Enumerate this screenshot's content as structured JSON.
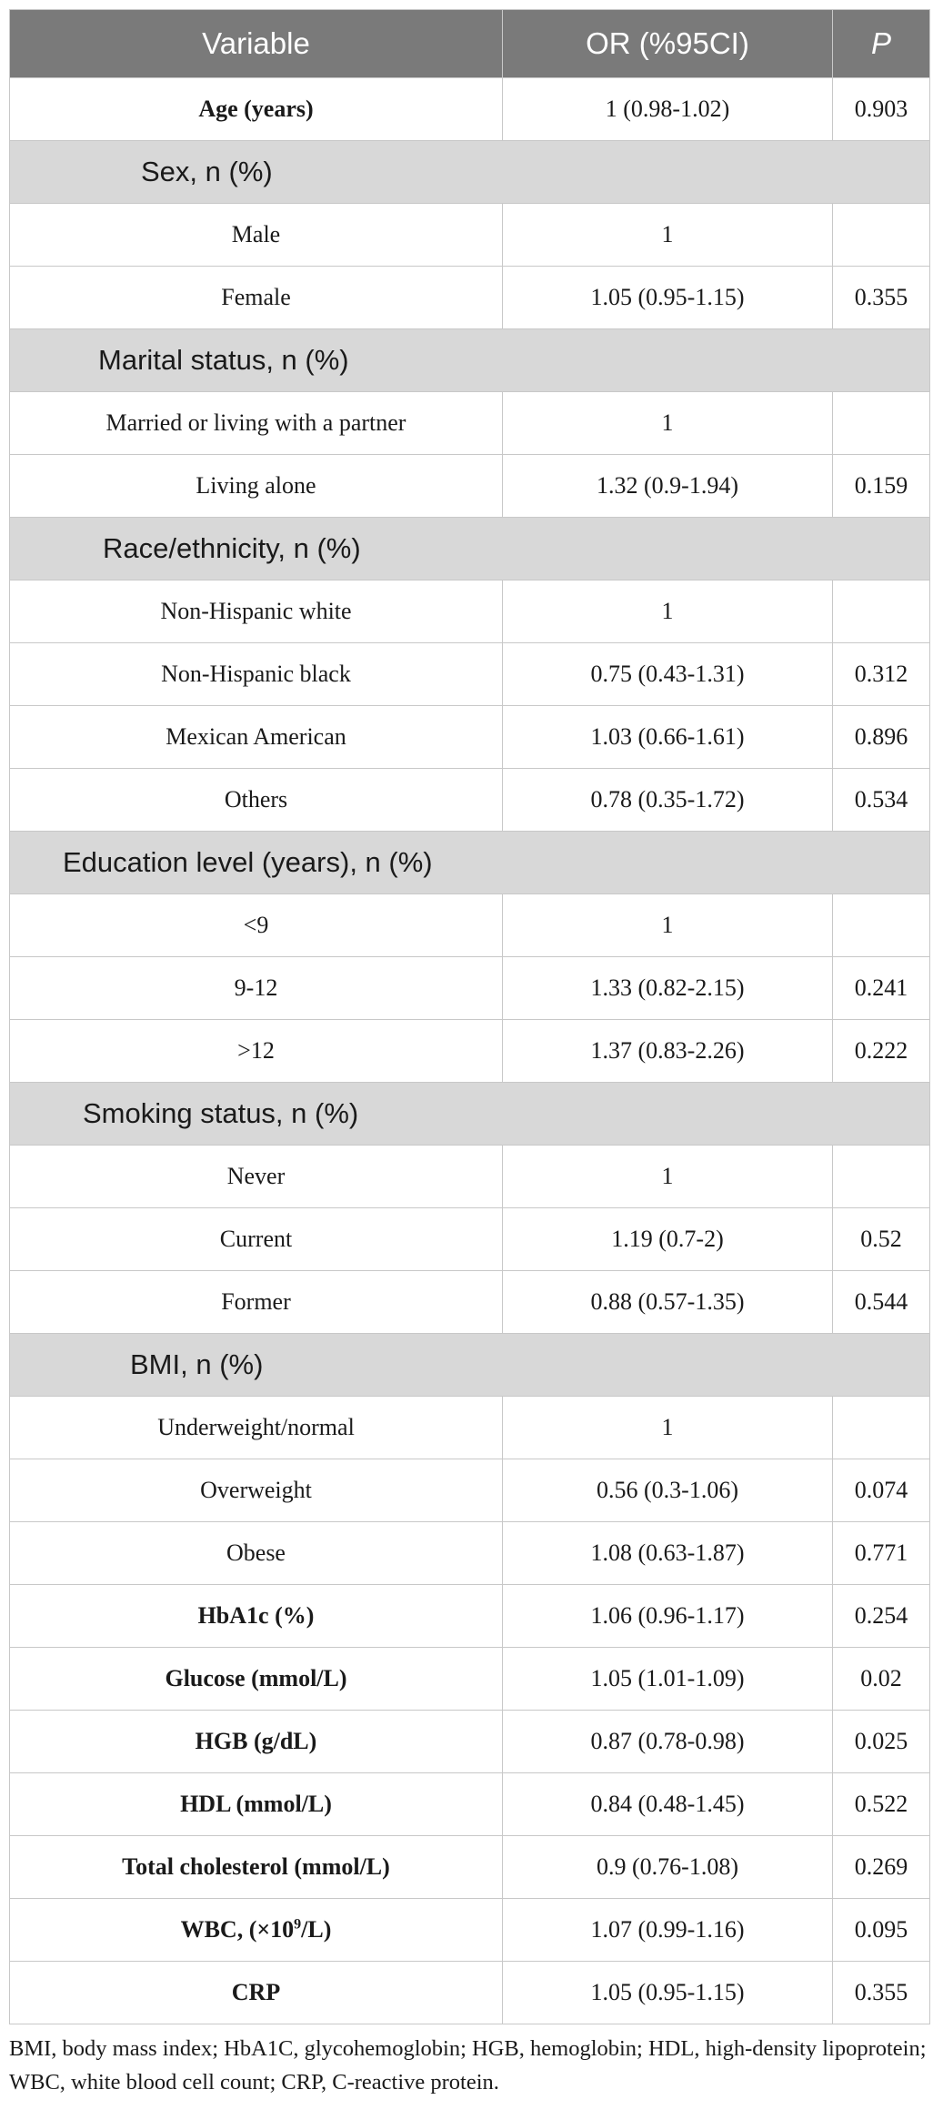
{
  "table": {
    "headers": [
      "Variable",
      "OR (%95CI)",
      "P"
    ],
    "rows": [
      {
        "type": "bold",
        "label": "Age (years)",
        "or": "1 (0.98-1.02)",
        "p": "0.903"
      },
      {
        "type": "section",
        "label": "Sex, n (%)"
      },
      {
        "type": "normal",
        "label": "Male",
        "or": "1",
        "p": ""
      },
      {
        "type": "normal",
        "label": "Female",
        "or": "1.05 (0.95-1.15)",
        "p": "0.355"
      },
      {
        "type": "section",
        "label": "Marital status, n (%)"
      },
      {
        "type": "normal",
        "label": "Married or living with a partner",
        "or": "1",
        "p": ""
      },
      {
        "type": "normal",
        "label": "Living alone",
        "or": "1.32 (0.9-1.94)",
        "p": "0.159"
      },
      {
        "type": "section",
        "label": "Race/ethnicity, n (%)"
      },
      {
        "type": "normal",
        "label": "Non-Hispanic white",
        "or": "1",
        "p": ""
      },
      {
        "type": "normal",
        "label": "Non-Hispanic black",
        "or": "0.75 (0.43-1.31)",
        "p": "0.312"
      },
      {
        "type": "normal",
        "label": "Mexican American",
        "or": "1.03 (0.66-1.61)",
        "p": "0.896"
      },
      {
        "type": "normal",
        "label": "Others",
        "or": "0.78 (0.35-1.72)",
        "p": "0.534"
      },
      {
        "type": "section",
        "label": "Education level (years), n (%)"
      },
      {
        "type": "normal",
        "label": "<9",
        "or": "1",
        "p": ""
      },
      {
        "type": "normal",
        "label": "9-12",
        "or": "1.33 (0.82-2.15)",
        "p": "0.241"
      },
      {
        "type": "normal",
        "label": ">12",
        "or": "1.37 (0.83-2.26)",
        "p": "0.222"
      },
      {
        "type": "section",
        "label": "Smoking status, n (%)"
      },
      {
        "type": "normal",
        "label": "Never",
        "or": "1",
        "p": ""
      },
      {
        "type": "normal",
        "label": "Current",
        "or": "1.19 (0.7-2)",
        "p": "0.52"
      },
      {
        "type": "normal",
        "label": "Former",
        "or": "0.88 (0.57-1.35)",
        "p": "0.544"
      },
      {
        "type": "section",
        "label": "BMI, n (%)"
      },
      {
        "type": "normal",
        "label": "Underweight/normal",
        "or": "1",
        "p": ""
      },
      {
        "type": "normal",
        "label": "Overweight",
        "or": "0.56 (0.3-1.06)",
        "p": "0.074"
      },
      {
        "type": "normal",
        "label": "Obese",
        "or": "1.08 (0.63-1.87)",
        "p": "0.771"
      },
      {
        "type": "bold",
        "label": "HbA1c (%)",
        "or": "1.06 (0.96-1.17)",
        "p": "0.254"
      },
      {
        "type": "bold",
        "label": "Glucose (mmol/L)",
        "or": "1.05 (1.01-1.09)",
        "p": "0.02"
      },
      {
        "type": "bold",
        "label": "HGB (g/dL)",
        "or": "0.87 (0.78-0.98)",
        "p": "0.025"
      },
      {
        "type": "bold",
        "label": "HDL (mmol/L)",
        "or": "0.84 (0.48-1.45)",
        "p": "0.522"
      },
      {
        "type": "bold",
        "label": "Total cholesterol (mmol/L)",
        "or": "0.9 (0.76-1.08)",
        "p": "0.269"
      },
      {
        "type": "bold",
        "label": "WBC, (×10",
        "label_sup": "9",
        "label_after": "/L)",
        "or": "1.07 (0.99-1.16)",
        "p": "0.095"
      },
      {
        "type": "bold",
        "label": "CRP",
        "or": "1.05 (0.95-1.15)",
        "p": "0.355"
      }
    ]
  },
  "footnote": "BMI, body mass index; HbA1C, glycohemoglobin; HGB, hemoglobin; HDL, high-density lipoprotein; WBC, white blood cell count; CRP, C-reactive protein."
}
